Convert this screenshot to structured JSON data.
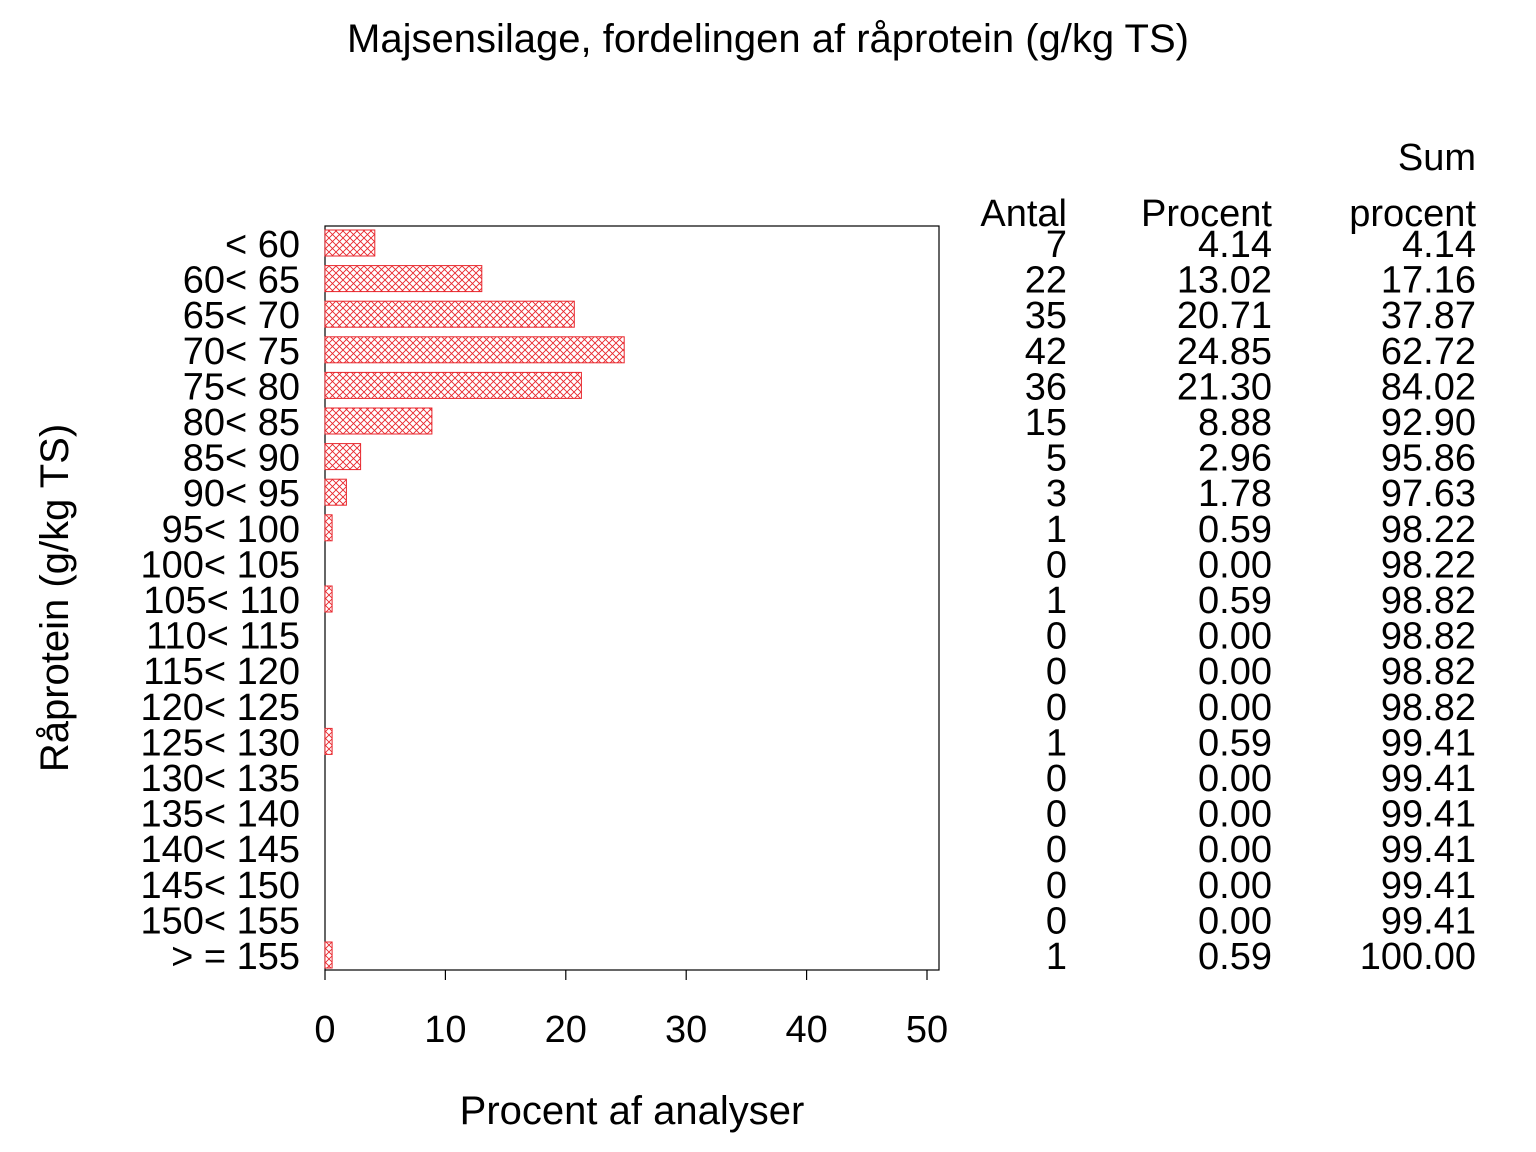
{
  "chart_data": {
    "type": "bar",
    "orientation": "horizontal",
    "title": "Majsensilage, fordelingen af råprotein (g/kg TS)",
    "xlabel": "Procent af analyser",
    "ylabel": "Råprotein (g/kg TS)",
    "xlim": [
      0,
      51
    ],
    "xticks": [
      "0",
      "10",
      "20",
      "30",
      "40",
      "50"
    ],
    "xtick_values": [
      0,
      10,
      20,
      30,
      40,
      50
    ],
    "grid": false,
    "bar_fill": "crosshatch",
    "bar_color": "#e8262c",
    "categories": [
      "< 60",
      "60< 65",
      "65< 70",
      "70< 75",
      "75< 80",
      "80< 85",
      "85< 90",
      "90< 95",
      "95< 100",
      "100< 105",
      "105< 110",
      "110< 115",
      "115< 120",
      "120< 125",
      "125< 130",
      "130< 135",
      "135< 140",
      "140< 145",
      "145< 150",
      "150< 155",
      "> = 155"
    ],
    "values": [
      4.14,
      13.02,
      20.71,
      24.85,
      21.3,
      8.88,
      2.96,
      1.78,
      0.59,
      0.0,
      0.59,
      0.0,
      0.0,
      0.0,
      0.59,
      0.0,
      0.0,
      0.0,
      0.0,
      0.0,
      0.59
    ],
    "table": {
      "headers": {
        "antal": "Antal",
        "procent": "Procent",
        "sum_line1": "Sum",
        "sum_line2": "procent"
      },
      "antal": [
        "7",
        "22",
        "35",
        "42",
        "36",
        "15",
        "5",
        "3",
        "1",
        "0",
        "1",
        "0",
        "0",
        "0",
        "1",
        "0",
        "0",
        "0",
        "0",
        "0",
        "1"
      ],
      "procent": [
        "4.14",
        "13.02",
        "20.71",
        "24.85",
        "21.30",
        "8.88",
        "2.96",
        "1.78",
        "0.59",
        "0.00",
        "0.59",
        "0.00",
        "0.00",
        "0.00",
        "0.59",
        "0.00",
        "0.00",
        "0.00",
        "0.00",
        "0.00",
        "0.59"
      ],
      "sum_procent": [
        "4.14",
        "17.16",
        "37.87",
        "62.72",
        "84.02",
        "92.90",
        "95.86",
        "97.63",
        "98.22",
        "98.22",
        "98.82",
        "98.82",
        "98.82",
        "98.82",
        "99.41",
        "99.41",
        "99.41",
        "99.41",
        "99.41",
        "99.41",
        "100.00"
      ]
    }
  }
}
